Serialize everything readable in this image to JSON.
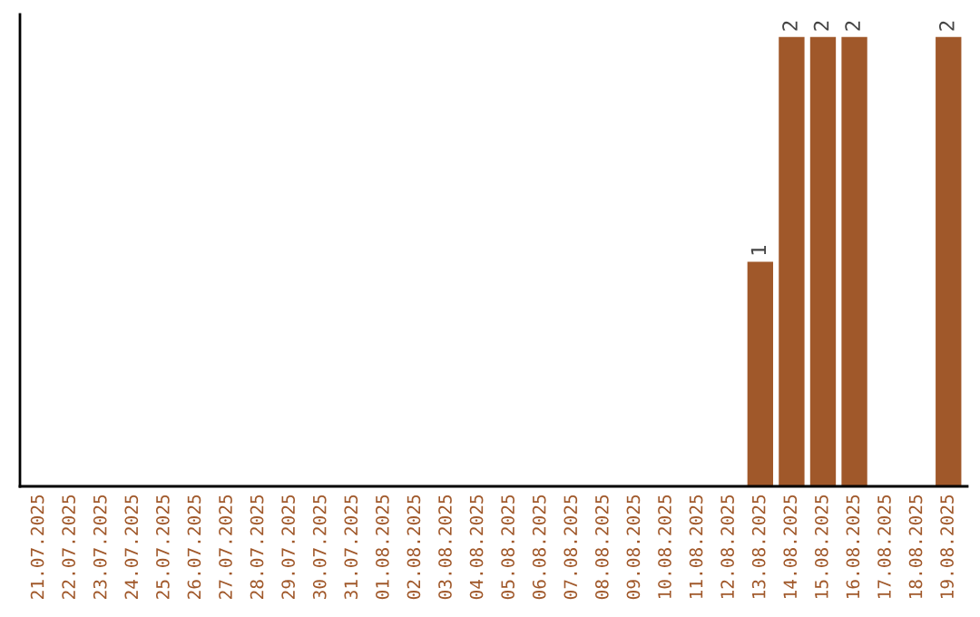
{
  "chart_data": {
    "type": "bar",
    "categories": [
      "21.07.2025",
      "22.07.2025",
      "23.07.2025",
      "24.07.2025",
      "25.07.2025",
      "26.07.2025",
      "27.07.2025",
      "28.07.2025",
      "29.07.2025",
      "30.07.2025",
      "31.07.2025",
      "01.08.2025",
      "02.08.2025",
      "03.08.2025",
      "04.08.2025",
      "05.08.2025",
      "06.08.2025",
      "07.08.2025",
      "08.08.2025",
      "09.08.2025",
      "10.08.2025",
      "11.08.2025",
      "12.08.2025",
      "13.08.2025",
      "14.08.2025",
      "15.08.2025",
      "16.08.2025",
      "17.08.2025",
      "18.08.2025",
      "19.08.2025"
    ],
    "values": [
      null,
      null,
      null,
      null,
      null,
      null,
      null,
      null,
      null,
      null,
      null,
      null,
      null,
      null,
      null,
      null,
      null,
      null,
      null,
      null,
      null,
      null,
      null,
      1,
      2,
      2,
      2,
      null,
      null,
      2
    ],
    "value_labels": [
      null,
      null,
      null,
      null,
      null,
      null,
      null,
      null,
      null,
      null,
      null,
      null,
      null,
      null,
      null,
      null,
      null,
      null,
      null,
      null,
      null,
      null,
      null,
      "1",
      "2",
      "2",
      "2",
      null,
      null,
      "2"
    ],
    "color": "#a0582a",
    "tick_labels": "x",
    "grid": false,
    "legend": false
  }
}
